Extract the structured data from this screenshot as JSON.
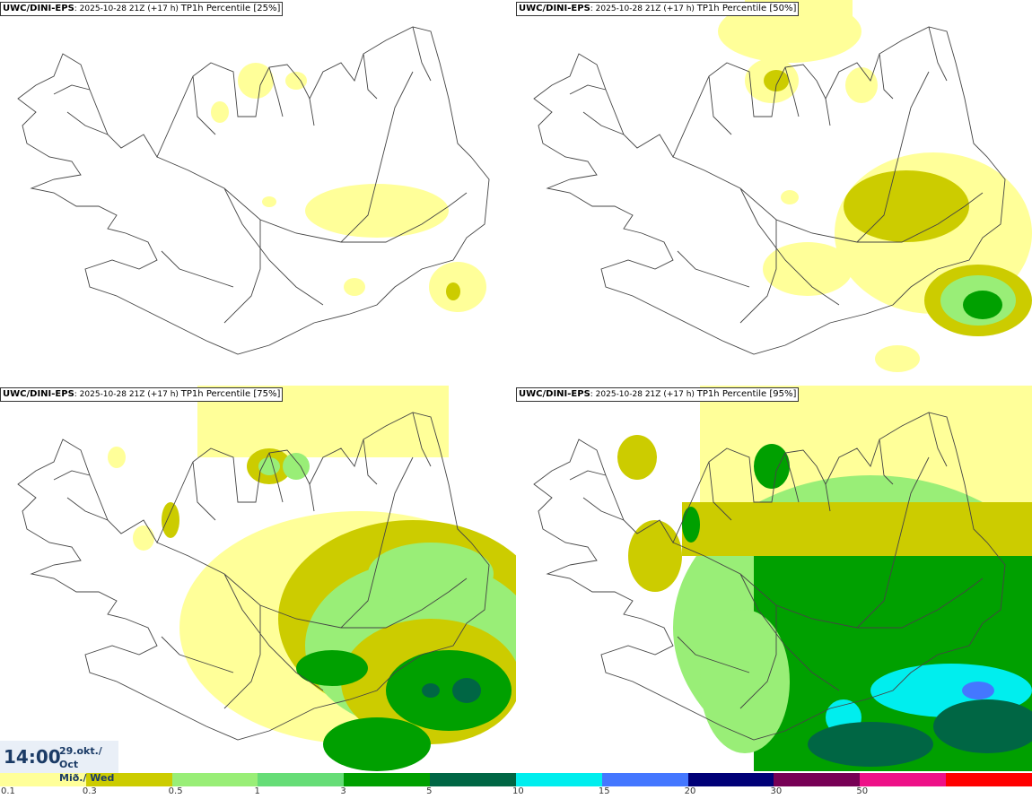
{
  "panels": [
    {
      "source": "UWC/DINI-EPS",
      "run": ": 2025-10-28 21Z",
      "lead": "(+17 h)",
      "field": "TP1h Percentile [25%]",
      "level": 0
    },
    {
      "source": "UWC/DINI-EPS",
      "run": ": 2025-10-28 21Z",
      "lead": "(+17 h)",
      "field": "TP1h Percentile [50%]",
      "level": 1
    },
    {
      "source": "UWC/DINI-EPS",
      "run": ": 2025-10-28 21Z",
      "lead": "(+17 h)",
      "field": "TP1h Percentile [75%]",
      "level": 2
    },
    {
      "source": "UWC/DINI-EPS",
      "run": ": 2025-10-28 21Z",
      "lead": "(+17 h)",
      "field": "TP1h Percentile [95%]",
      "level": 3
    }
  ],
  "valid_time": {
    "hour": "14:00",
    "date": "29.okt./ Oct",
    "weekday": "Mið./ Wed"
  },
  "legend": {
    "colors": [
      "#ffff99",
      "#cccc00",
      "#99ee77",
      "#66dd77",
      "#00a000",
      "#006644",
      "#00eeee",
      "#4477ff",
      "#000077",
      "#770055",
      "#ee1188",
      "#ff0000"
    ],
    "labels": [
      {
        "text": "0.1",
        "boundary": 0
      },
      {
        "text": "0.3",
        "boundary": 1
      },
      {
        "text": "0.5",
        "boundary": 2
      },
      {
        "text": "1",
        "boundary": 3
      },
      {
        "text": "3",
        "boundary": 4
      },
      {
        "text": "5",
        "boundary": 5
      },
      {
        "text": "10",
        "boundary": 6
      },
      {
        "text": "15",
        "boundary": 7
      },
      {
        "text": "20",
        "boundary": 8
      },
      {
        "text": "30",
        "boundary": 9
      },
      {
        "text": "50",
        "boundary": 10
      }
    ]
  }
}
